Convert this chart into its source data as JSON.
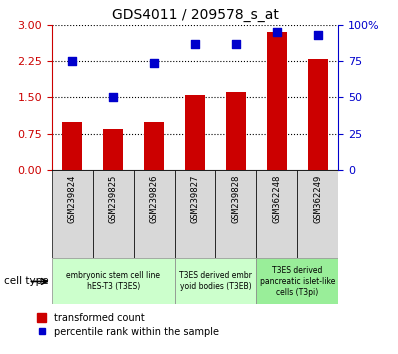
{
  "title": "GDS4011 / 209578_s_at",
  "samples": [
    "GSM239824",
    "GSM239825",
    "GSM239826",
    "GSM239827",
    "GSM239828",
    "GSM362248",
    "GSM362249"
  ],
  "transformed_count": [
    1.0,
    0.85,
    1.0,
    1.55,
    1.62,
    2.85,
    2.3
  ],
  "percentile_rank": [
    75,
    50,
    74,
    87,
    87,
    95,
    93
  ],
  "left_ylim": [
    0,
    3
  ],
  "left_yticks": [
    0,
    0.75,
    1.5,
    2.25,
    3
  ],
  "right_ylim": [
    0,
    100
  ],
  "right_yticks": [
    0,
    25,
    50,
    75,
    100
  ],
  "bar_color": "#cc0000",
  "dot_color": "#0000cc",
  "cell_groups": [
    {
      "label": "embryonic stem cell line\nhES-T3 (T3ES)",
      "start": 0,
      "end": 3,
      "color": "#ccffcc"
    },
    {
      "label": "T3ES derived embr\nyoid bodies (T3EB)",
      "start": 3,
      "end": 5,
      "color": "#ccffcc"
    },
    {
      "label": "T3ES derived\npancreatic islet-like\ncells (T3pi)",
      "start": 5,
      "end": 7,
      "color": "#99ee99"
    }
  ],
  "cell_type_label": "cell type",
  "legend_bar_label": "transformed count",
  "legend_dot_label": "percentile rank within the sample",
  "left_axis_color": "#cc0000",
  "right_axis_color": "#0000cc",
  "bar_width": 0.5,
  "dot_size": 40
}
